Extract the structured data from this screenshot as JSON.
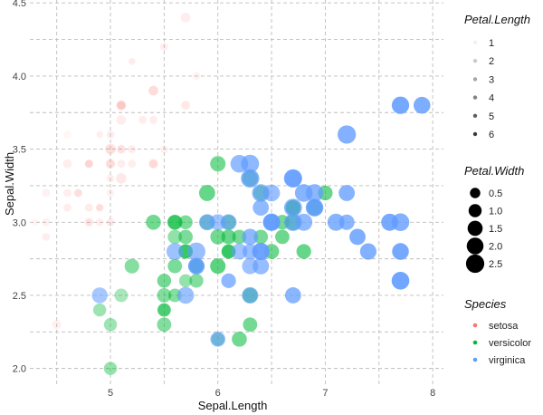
{
  "chart_data": {
    "type": "scatter",
    "xlabel": "Sepal.Length",
    "ylabel": "Sepal.Width",
    "xlim": [
      4.25,
      8.1
    ],
    "ylim": [
      1.88,
      4.52
    ],
    "x_ticks": [
      5,
      6,
      7,
      8
    ],
    "y_ticks": [
      2.0,
      2.5,
      3.0,
      3.5,
      4.0,
      4.5
    ],
    "x_tick_labels": [
      "5",
      "6",
      "7",
      "8"
    ],
    "y_tick_labels": [
      "2.0",
      "2.5",
      "3.0",
      "3.5",
      "4.0",
      "4.5"
    ],
    "grid": true,
    "grid_style": "dashed",
    "legend_position": "right",
    "size_encoding": "Petal.Width",
    "alpha_encoding": "Petal.Length",
    "color_encoding": "Species",
    "legends": [
      {
        "title": "Petal.Length",
        "items": [
          "1",
          "2",
          "3",
          "4",
          "5",
          "6"
        ],
        "values": [
          1,
          2,
          3,
          4,
          5,
          6
        ]
      },
      {
        "title": "Petal.Width",
        "items": [
          "0.5",
          "1.0",
          "1.5",
          "2.0",
          "2.5"
        ],
        "values": [
          0.5,
          1.0,
          1.5,
          2.0,
          2.5
        ]
      },
      {
        "title": "Species",
        "items": [
          "setosa",
          "versicolor",
          "virginica"
        ],
        "colors": [
          "#F8766D",
          "#00BA38",
          "#619CFF"
        ]
      }
    ],
    "series": [
      {
        "name": "setosa",
        "color": "#F8766D",
        "columns": [
          "Sepal.Length",
          "Sepal.Width",
          "Petal.Length",
          "Petal.Width"
        ],
        "points": [
          [
            5.1,
            3.5,
            1.4,
            0.2
          ],
          [
            4.9,
            3.0,
            1.4,
            0.2
          ],
          [
            4.7,
            3.2,
            1.3,
            0.2
          ],
          [
            4.6,
            3.1,
            1.5,
            0.2
          ],
          [
            5.0,
            3.6,
            1.4,
            0.2
          ],
          [
            5.4,
            3.9,
            1.7,
            0.4
          ],
          [
            4.6,
            3.4,
            1.4,
            0.3
          ],
          [
            5.0,
            3.4,
            1.5,
            0.2
          ],
          [
            4.4,
            2.9,
            1.4,
            0.2
          ],
          [
            4.9,
            3.1,
            1.5,
            0.1
          ],
          [
            5.4,
            3.7,
            1.5,
            0.2
          ],
          [
            4.8,
            3.4,
            1.6,
            0.2
          ],
          [
            4.8,
            3.0,
            1.4,
            0.1
          ],
          [
            4.3,
            3.0,
            1.1,
            0.1
          ],
          [
            5.8,
            4.0,
            1.2,
            0.2
          ],
          [
            5.7,
            4.4,
            1.5,
            0.4
          ],
          [
            5.4,
            3.9,
            1.3,
            0.4
          ],
          [
            5.1,
            3.5,
            1.4,
            0.3
          ],
          [
            5.7,
            3.8,
            1.7,
            0.3
          ],
          [
            5.1,
            3.8,
            1.5,
            0.3
          ],
          [
            5.4,
            3.4,
            1.7,
            0.2
          ],
          [
            5.1,
            3.7,
            1.5,
            0.4
          ],
          [
            4.6,
            3.6,
            1.0,
            0.2
          ],
          [
            5.1,
            3.3,
            1.7,
            0.5
          ],
          [
            4.8,
            3.4,
            1.9,
            0.2
          ],
          [
            5.0,
            3.0,
            1.6,
            0.2
          ],
          [
            5.0,
            3.4,
            1.6,
            0.4
          ],
          [
            5.2,
            3.5,
            1.5,
            0.2
          ],
          [
            5.2,
            3.4,
            1.4,
            0.2
          ],
          [
            4.7,
            3.2,
            1.6,
            0.2
          ],
          [
            4.8,
            3.1,
            1.6,
            0.2
          ],
          [
            5.4,
            3.4,
            1.5,
            0.4
          ],
          [
            5.2,
            4.1,
            1.5,
            0.1
          ],
          [
            5.5,
            4.2,
            1.4,
            0.2
          ],
          [
            4.9,
            3.1,
            1.5,
            0.2
          ],
          [
            5.0,
            3.2,
            1.2,
            0.2
          ],
          [
            5.5,
            3.5,
            1.3,
            0.2
          ],
          [
            4.9,
            3.6,
            1.4,
            0.1
          ],
          [
            4.4,
            3.0,
            1.3,
            0.2
          ],
          [
            5.1,
            3.4,
            1.5,
            0.2
          ],
          [
            5.0,
            3.5,
            1.3,
            0.3
          ],
          [
            4.5,
            2.3,
            1.3,
            0.3
          ],
          [
            4.4,
            3.2,
            1.3,
            0.2
          ],
          [
            5.0,
            3.5,
            1.6,
            0.6
          ],
          [
            5.1,
            3.8,
            1.9,
            0.4
          ],
          [
            4.8,
            3.0,
            1.4,
            0.3
          ],
          [
            5.1,
            3.8,
            1.6,
            0.2
          ],
          [
            4.6,
            3.2,
            1.4,
            0.2
          ],
          [
            5.3,
            3.7,
            1.5,
            0.2
          ],
          [
            5.0,
            3.3,
            1.4,
            0.2
          ]
        ]
      },
      {
        "name": "versicolor",
        "color": "#00BA38",
        "columns": [
          "Sepal.Length",
          "Sepal.Width",
          "Petal.Length",
          "Petal.Width"
        ],
        "points": [
          [
            7.0,
            3.2,
            4.7,
            1.4
          ],
          [
            6.4,
            3.2,
            4.5,
            1.5
          ],
          [
            6.9,
            3.1,
            4.9,
            1.5
          ],
          [
            5.5,
            2.3,
            4.0,
            1.3
          ],
          [
            6.5,
            2.8,
            4.6,
            1.5
          ],
          [
            5.7,
            2.8,
            4.5,
            1.3
          ],
          [
            6.3,
            3.3,
            4.7,
            1.6
          ],
          [
            4.9,
            2.4,
            3.3,
            1.0
          ],
          [
            6.6,
            2.9,
            4.6,
            1.3
          ],
          [
            5.2,
            2.7,
            3.9,
            1.4
          ],
          [
            5.0,
            2.0,
            3.5,
            1.0
          ],
          [
            5.9,
            3.0,
            4.2,
            1.5
          ],
          [
            6.0,
            2.2,
            4.0,
            1.0
          ],
          [
            6.1,
            2.9,
            4.7,
            1.4
          ],
          [
            5.6,
            2.9,
            3.6,
            1.3
          ],
          [
            6.7,
            3.1,
            4.4,
            1.4
          ],
          [
            5.6,
            3.0,
            4.5,
            1.5
          ],
          [
            5.8,
            2.7,
            4.1,
            1.0
          ],
          [
            6.2,
            2.2,
            4.5,
            1.5
          ],
          [
            5.6,
            2.5,
            3.9,
            1.1
          ],
          [
            5.9,
            3.2,
            4.8,
            1.8
          ],
          [
            6.1,
            2.8,
            4.0,
            1.3
          ],
          [
            6.3,
            2.5,
            4.9,
            1.5
          ],
          [
            6.1,
            2.8,
            4.7,
            1.2
          ],
          [
            6.4,
            2.9,
            4.3,
            1.3
          ],
          [
            6.6,
            3.0,
            4.4,
            1.4
          ],
          [
            6.8,
            2.8,
            4.8,
            1.4
          ],
          [
            6.7,
            3.0,
            5.0,
            1.7
          ],
          [
            6.0,
            2.9,
            4.5,
            1.5
          ],
          [
            5.7,
            2.6,
            3.5,
            1.0
          ],
          [
            5.5,
            2.4,
            3.8,
            1.1
          ],
          [
            5.5,
            2.4,
            3.7,
            1.0
          ],
          [
            5.8,
            2.7,
            3.9,
            1.2
          ],
          [
            6.0,
            2.7,
            5.1,
            1.6
          ],
          [
            5.4,
            3.0,
            4.5,
            1.5
          ],
          [
            6.0,
            3.4,
            4.5,
            1.6
          ],
          [
            6.7,
            3.1,
            4.7,
            1.5
          ],
          [
            6.3,
            2.3,
            4.4,
            1.3
          ],
          [
            5.6,
            3.0,
            4.1,
            1.3
          ],
          [
            5.5,
            2.5,
            4.0,
            1.3
          ],
          [
            5.5,
            2.6,
            4.4,
            1.2
          ],
          [
            6.1,
            3.0,
            4.6,
            1.4
          ],
          [
            5.8,
            2.6,
            4.0,
            1.2
          ],
          [
            5.0,
            2.3,
            3.3,
            1.0
          ],
          [
            5.6,
            2.7,
            4.2,
            1.3
          ],
          [
            5.7,
            3.0,
            4.2,
            1.2
          ],
          [
            5.7,
            2.9,
            4.2,
            1.3
          ],
          [
            6.2,
            2.9,
            4.3,
            1.3
          ],
          [
            5.1,
            2.5,
            3.0,
            1.1
          ],
          [
            5.7,
            2.8,
            4.1,
            1.3
          ]
        ]
      },
      {
        "name": "virginica",
        "color": "#619CFF",
        "columns": [
          "Sepal.Length",
          "Sepal.Width",
          "Petal.Length",
          "Petal.Width"
        ],
        "points": [
          [
            6.3,
            3.3,
            6.0,
            2.5
          ],
          [
            5.8,
            2.7,
            5.1,
            1.9
          ],
          [
            7.1,
            3.0,
            5.9,
            2.1
          ],
          [
            6.3,
            2.9,
            5.6,
            1.8
          ],
          [
            6.5,
            3.0,
            5.8,
            2.2
          ],
          [
            7.6,
            3.0,
            6.6,
            2.1
          ],
          [
            4.9,
            2.5,
            4.5,
            1.7
          ],
          [
            7.3,
            2.9,
            6.3,
            1.8
          ],
          [
            6.7,
            2.5,
            5.8,
            1.8
          ],
          [
            7.2,
            3.6,
            6.1,
            2.5
          ],
          [
            6.5,
            3.2,
            5.1,
            2.0
          ],
          [
            6.4,
            2.7,
            5.3,
            1.9
          ],
          [
            6.8,
            3.0,
            5.5,
            2.1
          ],
          [
            5.7,
            2.5,
            5.0,
            2.0
          ],
          [
            5.8,
            2.8,
            5.1,
            2.4
          ],
          [
            6.4,
            3.2,
            5.3,
            2.3
          ],
          [
            6.5,
            3.0,
            5.5,
            1.8
          ],
          [
            7.7,
            3.8,
            6.7,
            2.2
          ],
          [
            7.7,
            2.6,
            6.9,
            2.3
          ],
          [
            6.0,
            2.2,
            5.0,
            1.5
          ],
          [
            6.9,
            3.2,
            5.7,
            2.3
          ],
          [
            5.6,
            2.8,
            4.9,
            2.0
          ],
          [
            7.7,
            2.8,
            6.7,
            2.0
          ],
          [
            6.3,
            2.7,
            4.9,
            1.8
          ],
          [
            6.7,
            3.3,
            5.7,
            2.1
          ],
          [
            7.2,
            3.2,
            6.0,
            1.8
          ],
          [
            6.2,
            2.8,
            4.8,
            1.8
          ],
          [
            6.1,
            3.0,
            4.9,
            1.8
          ],
          [
            6.4,
            2.8,
            5.6,
            2.1
          ],
          [
            7.2,
            3.0,
            5.8,
            1.6
          ],
          [
            7.4,
            2.8,
            6.1,
            1.9
          ],
          [
            7.9,
            3.8,
            6.4,
            2.0
          ],
          [
            6.4,
            2.8,
            5.6,
            2.2
          ],
          [
            6.3,
            2.8,
            5.1,
            1.5
          ],
          [
            6.1,
            2.6,
            5.6,
            1.4
          ],
          [
            7.7,
            3.0,
            6.1,
            2.3
          ],
          [
            6.3,
            3.4,
            5.6,
            2.4
          ],
          [
            6.4,
            3.1,
            5.5,
            1.8
          ],
          [
            6.0,
            3.0,
            4.8,
            1.8
          ],
          [
            6.9,
            3.1,
            5.4,
            2.1
          ],
          [
            6.7,
            3.1,
            5.6,
            2.4
          ],
          [
            6.9,
            3.1,
            5.1,
            2.3
          ],
          [
            5.8,
            2.7,
            5.1,
            1.9
          ],
          [
            6.8,
            3.2,
            5.9,
            2.3
          ],
          [
            6.7,
            3.3,
            5.7,
            2.5
          ],
          [
            6.7,
            3.0,
            5.2,
            2.3
          ],
          [
            6.3,
            2.5,
            5.0,
            1.9
          ],
          [
            6.5,
            3.0,
            5.2,
            2.0
          ],
          [
            6.2,
            3.4,
            5.4,
            2.3
          ],
          [
            5.9,
            3.0,
            5.1,
            1.8
          ]
        ]
      }
    ]
  }
}
